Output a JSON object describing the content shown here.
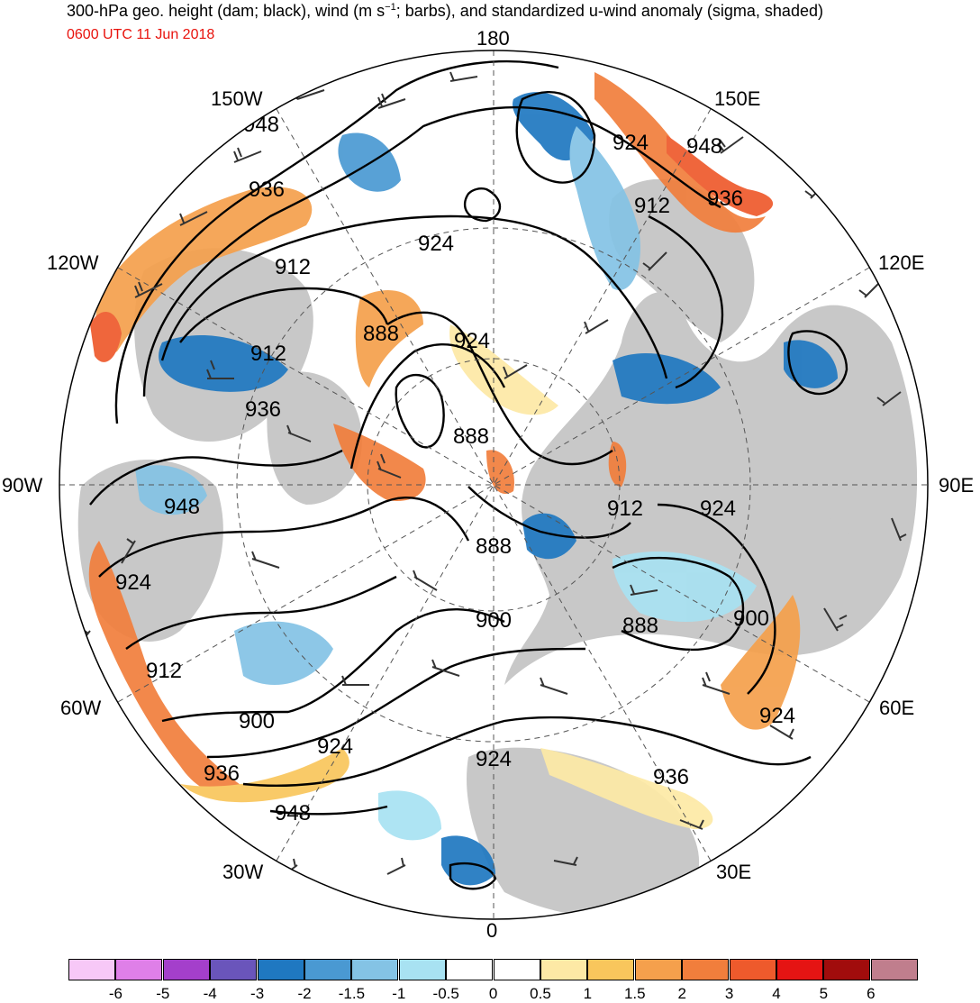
{
  "header": {
    "title_pre": "300-hPa geo. height (dam; black), wind (m s",
    "title_sup": "−1",
    "title_post": "; barbs), and standardized u-wind anomaly (sigma, shaded)",
    "valid_time": "0600 UTC 11 Jun 2018"
  },
  "map": {
    "projection": "north-polar-stereographic",
    "meridian_labels": {
      "lon_180": "180",
      "lon_0": "0",
      "lon_150W": "150W",
      "lon_150E": "150E",
      "lon_120W": "120W",
      "lon_120E": "120E",
      "lon_90W": "90W",
      "lon_90E": "90E",
      "lon_60W": "60W",
      "lon_60E": "60E",
      "lon_30W": "30W",
      "lon_30E": "30E"
    },
    "contour_labels": [
      "948",
      "936",
      "912",
      "936",
      "924",
      "888",
      "924",
      "888",
      "912",
      "888",
      "948",
      "924",
      "912",
      "900",
      "924",
      "936",
      "948",
      "924",
      "948",
      "936",
      "912",
      "924",
      "900",
      "888",
      "924",
      "936",
      "924",
      "900"
    ],
    "colors": {
      "land": "#c8c8c8",
      "contour": "#000000",
      "barb": "#333333",
      "neg_anomaly": "#4a8ed0",
      "pos_anomaly": "#f08a4b"
    }
  },
  "colorbar": {
    "bins": [
      {
        "color": "#f7c8f7"
      },
      {
        "color": "#df7fe8"
      },
      {
        "color": "#a43fcb"
      },
      {
        "color": "#6a55bb"
      },
      {
        "color": "#1f78c1"
      },
      {
        "color": "#4a99d2"
      },
      {
        "color": "#84c3e5"
      },
      {
        "color": "#a8e2f2"
      },
      {
        "color": "#ffffff"
      },
      {
        "color": "#ffffff"
      },
      {
        "color": "#fde9a5"
      },
      {
        "color": "#f9c65c"
      },
      {
        "color": "#f5a04c"
      },
      {
        "color": "#f17e3c"
      },
      {
        "color": "#ee5a2c"
      },
      {
        "color": "#e51413"
      },
      {
        "color": "#a10c0c"
      },
      {
        "color": "#c07e8d"
      }
    ],
    "tick_labels": [
      "-6",
      "-5",
      "-4",
      "-3",
      "-2",
      "-1.5",
      "-1",
      "-0.5",
      "0",
      "0.5",
      "1",
      "1.5",
      "2",
      "3",
      "4",
      "5",
      "6"
    ]
  }
}
